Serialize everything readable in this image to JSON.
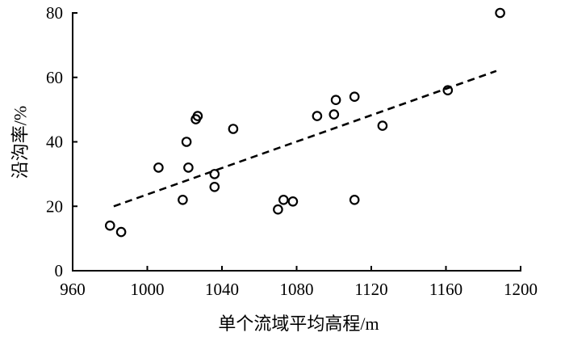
{
  "chart_data": {
    "type": "scatter",
    "xlabel": "单个流域平均高程/m",
    "ylabel": "沿沟率/%",
    "xlim": [
      960,
      1200
    ],
    "ylim": [
      0,
      80
    ],
    "xticks": [
      960,
      1000,
      1040,
      1080,
      1120,
      1160,
      1200
    ],
    "yticks": [
      0,
      20,
      40,
      60,
      80
    ],
    "grid": false,
    "series": [
      {
        "type": "scatter",
        "filled": false,
        "color": "#000000",
        "x": [
          980,
          986,
          1006,
          1019,
          1021,
          1022,
          1026,
          1027,
          1036,
          1036,
          1046,
          1070,
          1073,
          1078,
          1091,
          1100,
          1101,
          1111,
          1111,
          1126,
          1161,
          1189
        ],
        "y": [
          14,
          12,
          32,
          22,
          40,
          32,
          47,
          48,
          30,
          26,
          44,
          19,
          22,
          21.5,
          48,
          48.5,
          53,
          54,
          22,
          45,
          56,
          80
        ]
      },
      {
        "type": "line",
        "dashed": true,
        "color": "#000000",
        "x": [
          982,
          1187
        ],
        "y": [
          20,
          62
        ]
      }
    ]
  }
}
